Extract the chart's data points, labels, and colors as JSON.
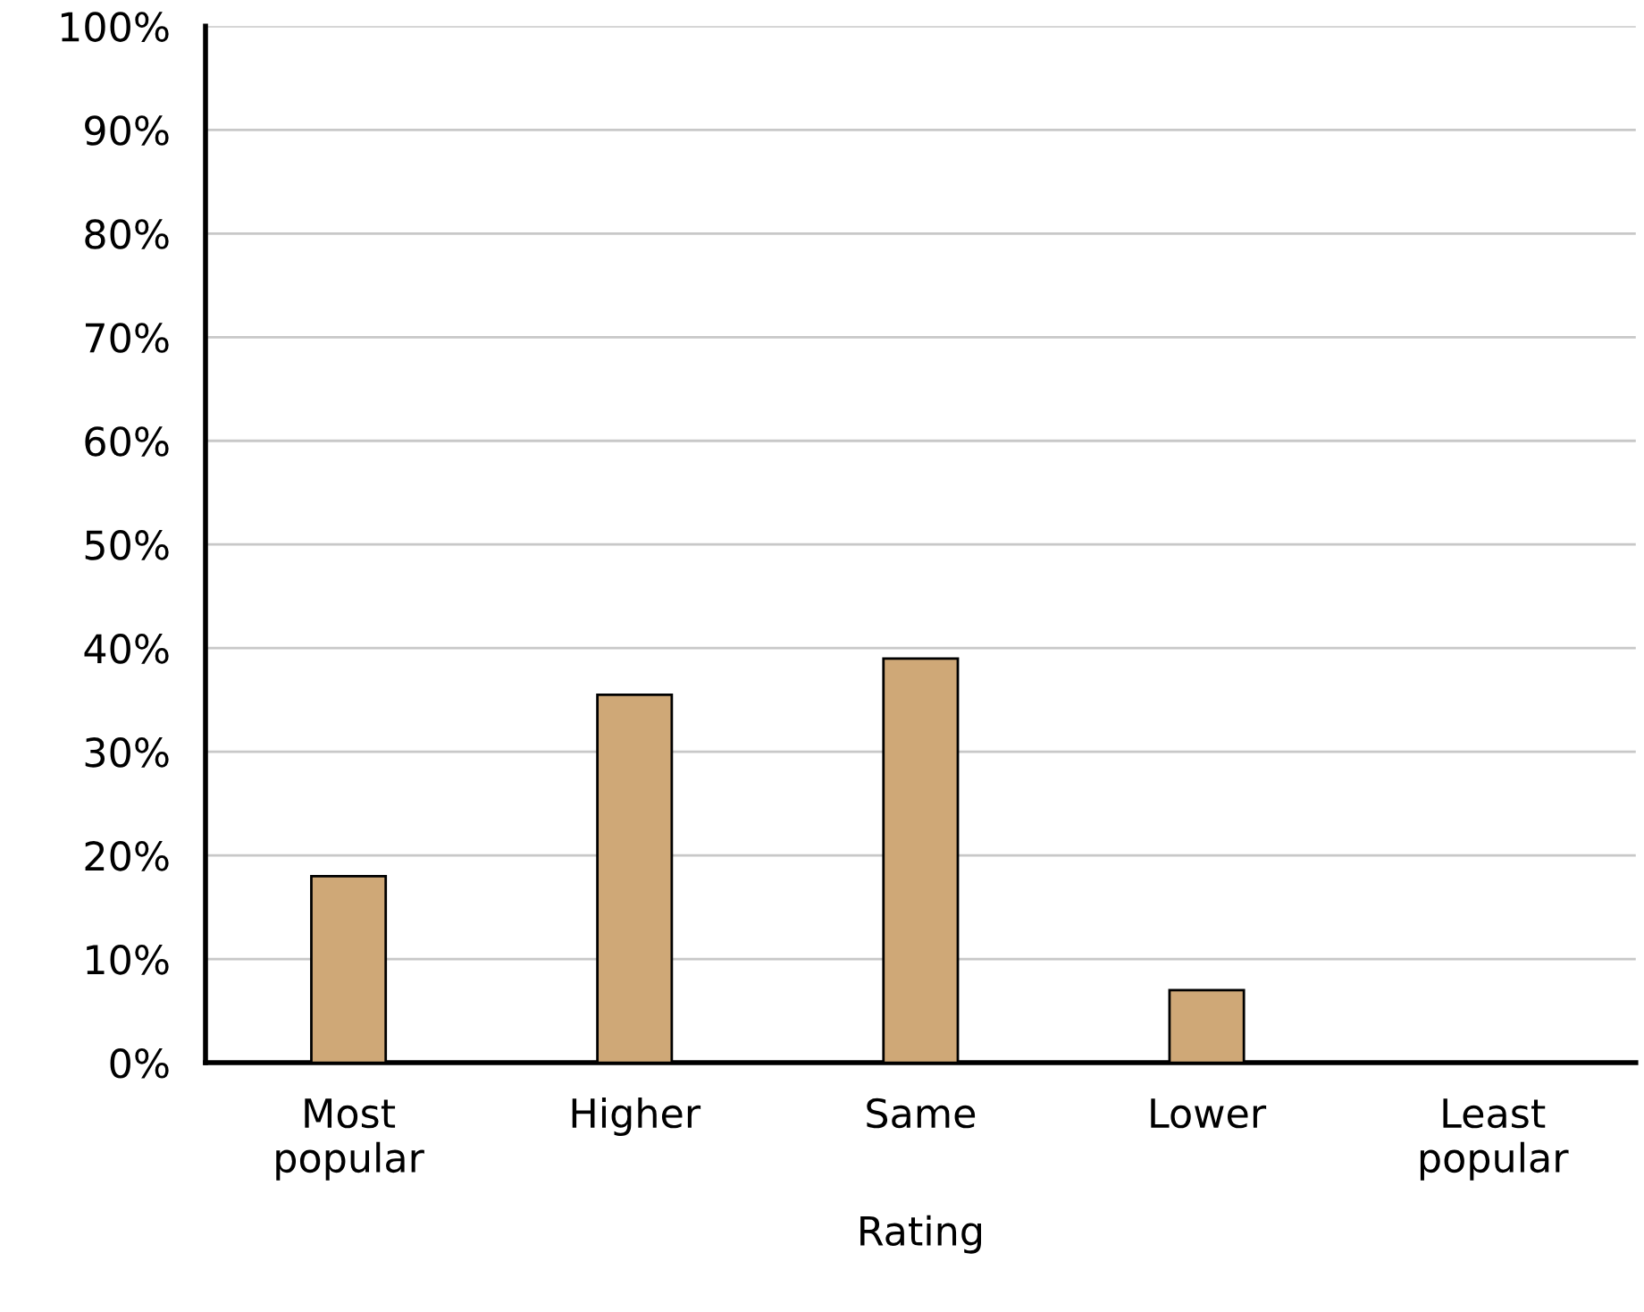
{
  "chart_data": {
    "type": "bar",
    "xlabel": "Rating",
    "categories": [
      "Most\npopular",
      "Higher",
      "Same",
      "Lower",
      "Least\npopular"
    ],
    "values": [
      18,
      35.5,
      39,
      7,
      0
    ],
    "color": "#cfa877",
    "ylim": [
      0,
      100
    ],
    "yticks": [
      {
        "value": 0,
        "label": "0%"
      },
      {
        "value": 10,
        "label": "10%"
      },
      {
        "value": 20,
        "label": "20%"
      },
      {
        "value": 30,
        "label": "30%"
      },
      {
        "value": 40,
        "label": "40%"
      },
      {
        "value": 50,
        "label": "50%"
      },
      {
        "value": 60,
        "label": "60%"
      },
      {
        "value": 70,
        "label": "70%"
      },
      {
        "value": 80,
        "label": "80%"
      },
      {
        "value": 90,
        "label": "90%"
      },
      {
        "value": 100,
        "label": "100%"
      }
    ],
    "grid": "y",
    "legend": false
  }
}
